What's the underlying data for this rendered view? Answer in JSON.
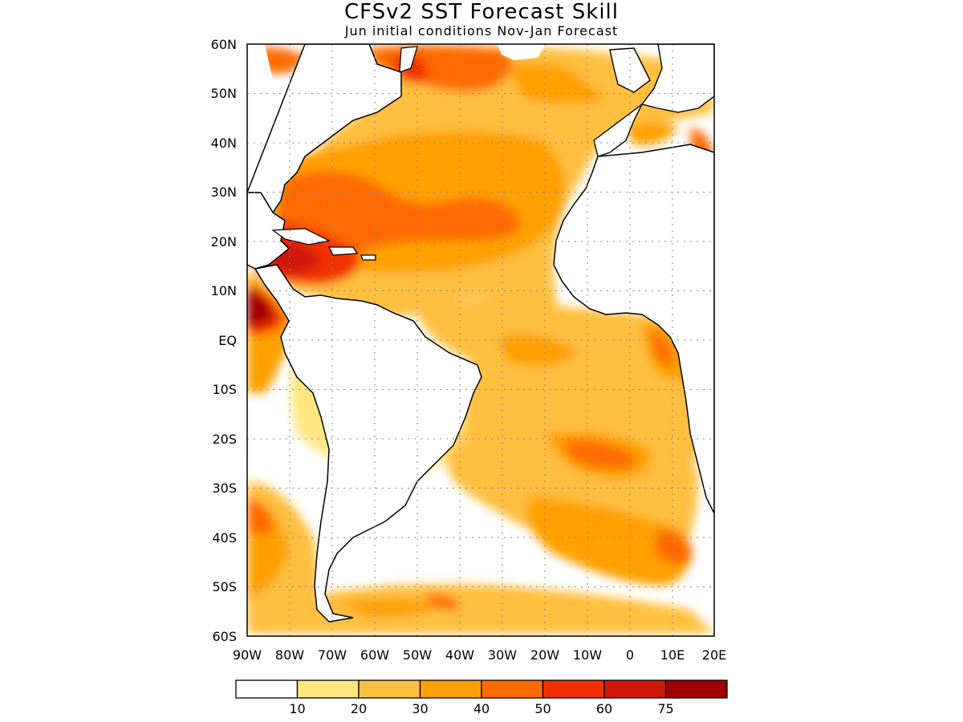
{
  "header": {
    "title": "CFSv2 SST Forecast Skill",
    "subtitle": "Jun initial conditions   Nov-Jan Forecast"
  },
  "map": {
    "lat_labels": [
      "60N",
      "50N",
      "40N",
      "30N",
      "20N",
      "10N",
      "EQ",
      "10S",
      "20S",
      "30S",
      "40S",
      "50S",
      "60S"
    ],
    "lon_labels": [
      "90W",
      "80W",
      "70W",
      "60W",
      "50W",
      "40W",
      "30W",
      "20W",
      "10W",
      "0",
      "10E",
      "20E"
    ],
    "lon_range": [
      -90,
      20
    ],
    "lat_range": [
      -60,
      60
    ],
    "grid": "dotted"
  },
  "colorbar": {
    "labels": [
      "10",
      "20",
      "30",
      "40",
      "50",
      "60",
      "75"
    ],
    "colors": [
      "#ffffff",
      "#ffe680",
      "#ffc040",
      "#ffa000",
      "#ff6a00",
      "#f03000",
      "#d01808",
      "#a00000"
    ]
  }
}
